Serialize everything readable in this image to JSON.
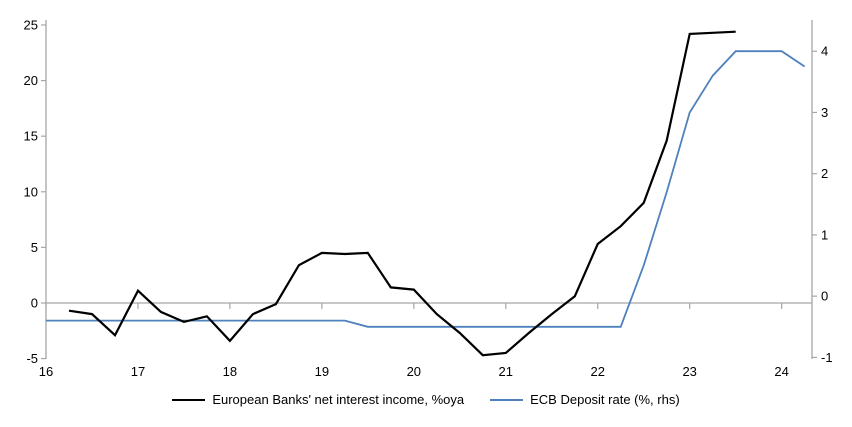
{
  "chart_data": {
    "type": "line",
    "title": "",
    "xlabel": "",
    "ylabel_left": "",
    "ylabel_right": "",
    "grid": "zero-line-only",
    "legend_position": "bottom-center",
    "x_axis": {
      "min": 16,
      "max": 24.33,
      "ticks": [
        16,
        17,
        18,
        19,
        20,
        21,
        22,
        23,
        24
      ]
    },
    "left_axis": {
      "min": -4.95,
      "max": 25.45,
      "ticks": [
        -5,
        0,
        5,
        10,
        15,
        20,
        25
      ]
    },
    "right_axis": {
      "min": -1.01,
      "max": 4.51,
      "ticks": [
        -1,
        0,
        1,
        2,
        3,
        4
      ]
    },
    "axis_color": "#a6a6a6",
    "series": [
      {
        "name": "European Banks' net interest income, %oya",
        "axis": "left",
        "color": "#000000",
        "width": 2.2,
        "x": [
          16.25,
          16.5,
          16.75,
          17,
          17.25,
          17.5,
          17.75,
          18,
          18.25,
          18.5,
          18.75,
          19,
          19.25,
          19.5,
          19.75,
          20,
          20.25,
          20.5,
          20.75,
          21,
          21.25,
          21.5,
          21.75,
          22,
          22.25,
          22.5,
          22.75,
          23,
          23.25,
          23.5
        ],
        "values": [
          -0.7,
          -1.0,
          -2.9,
          1.1,
          -0.8,
          -1.7,
          -1.2,
          -3.4,
          -1.0,
          -0.1,
          3.4,
          4.5,
          4.4,
          4.5,
          1.4,
          1.2,
          -1.0,
          -2.7,
          -4.7,
          -4.5,
          -2.7,
          -1.0,
          0.6,
          5.3,
          6.9,
          9.0,
          14.6,
          24.2,
          24.3,
          24.4
        ]
      },
      {
        "name": "ECB Deposit rate (%, rhs)",
        "axis": "right",
        "color": "#4f81bd",
        "width": 1.8,
        "x": [
          16,
          16.25,
          16.5,
          16.75,
          17,
          17.25,
          17.5,
          17.75,
          18,
          18.25,
          18.5,
          18.75,
          19,
          19.25,
          19.5,
          19.75,
          20,
          20.25,
          20.5,
          20.75,
          21,
          21.25,
          21.5,
          21.75,
          22,
          22.25,
          22.5,
          22.75,
          23,
          23.25,
          23.5,
          23.75,
          24,
          24.25
        ],
        "values": [
          -0.4,
          -0.4,
          -0.4,
          -0.4,
          -0.4,
          -0.4,
          -0.4,
          -0.4,
          -0.4,
          -0.4,
          -0.4,
          -0.4,
          -0.4,
          -0.4,
          -0.5,
          -0.5,
          -0.5,
          -0.5,
          -0.5,
          -0.5,
          -0.5,
          -0.5,
          -0.5,
          -0.5,
          -0.5,
          -0.5,
          0.5,
          1.7,
          3.0,
          3.6,
          4.0,
          4.0,
          4.0,
          3.75
        ]
      }
    ]
  }
}
